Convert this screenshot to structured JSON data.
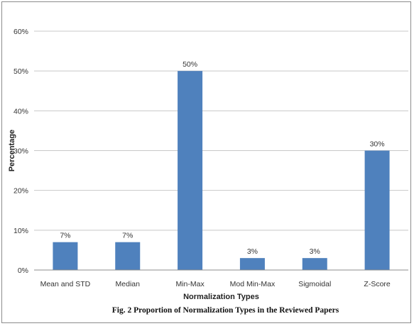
{
  "chart_data": {
    "type": "bar",
    "categories": [
      "Mean and STD",
      "Median",
      "Min-Max",
      "Mod Min-Max",
      "Sigmoidal",
      "Z-Score"
    ],
    "values": [
      7,
      7,
      50,
      3,
      3,
      30
    ],
    "data_labels": [
      "7%",
      "7%",
      "50%",
      "3%",
      "3%",
      "30%"
    ],
    "xlabel": "Normalization Types",
    "ylabel": "Percentage",
    "ylim": [
      0,
      60
    ],
    "yticks": [
      0,
      10,
      20,
      30,
      40,
      50,
      60
    ],
    "ytick_labels": [
      "0%",
      "10%",
      "20%",
      "30%",
      "40%",
      "50%",
      "60%"
    ],
    "grid": true,
    "legend": "none",
    "bar_color": "#4f81bd",
    "caption": "Fig. 2 Proportion of Normalization Types in the Reviewed Papers"
  }
}
